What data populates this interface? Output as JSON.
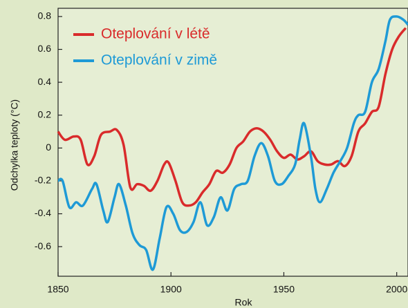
{
  "chart_data": {
    "type": "line",
    "xlabel": "Rok",
    "ylabel": "Odchylka teploty  (°C)",
    "xlim": [
      1850,
      2005
    ],
    "xticks": [
      1850,
      1900,
      1950,
      2000
    ],
    "ylim": [
      -0.78,
      0.85
    ],
    "yticks": [
      0.8,
      0.6,
      0.4,
      0.2,
      0,
      -0.2,
      -0.4,
      -0.6
    ],
    "legend": "upper left",
    "series": [
      {
        "name": "Oteplování v létě",
        "color": "#d92b2b",
        "x": [
          1850,
          1853,
          1857,
          1860,
          1863,
          1866,
          1869,
          1873,
          1876,
          1879,
          1882,
          1885,
          1888,
          1891,
          1894,
          1897,
          1899,
          1902,
          1905,
          1908,
          1911,
          1914,
          1917,
          1920,
          1923,
          1926,
          1929,
          1932,
          1935,
          1938,
          1941,
          1944,
          1947,
          1950,
          1953,
          1956,
          1959,
          1962,
          1965,
          1968,
          1971,
          1974,
          1977,
          1980,
          1983,
          1986,
          1989,
          1992,
          1995,
          1998,
          2001,
          2004
        ],
        "values": [
          0.1,
          0.05,
          0.07,
          0.05,
          -0.1,
          -0.05,
          0.08,
          0.1,
          0.11,
          0.02,
          -0.24,
          -0.22,
          -0.23,
          -0.26,
          -0.2,
          -0.1,
          -0.09,
          -0.2,
          -0.33,
          -0.35,
          -0.33,
          -0.27,
          -0.22,
          -0.14,
          -0.15,
          -0.1,
          0.0,
          0.04,
          0.1,
          0.12,
          0.1,
          0.05,
          -0.02,
          -0.06,
          -0.04,
          -0.07,
          -0.05,
          -0.02,
          -0.08,
          -0.1,
          -0.1,
          -0.08,
          -0.11,
          -0.05,
          0.1,
          0.15,
          0.22,
          0.25,
          0.45,
          0.6,
          0.68,
          0.73
        ]
      },
      {
        "name": "Oteplování v zimě",
        "color": "#1e9ad6",
        "x": [
          1850,
          1852,
          1855,
          1858,
          1861,
          1865,
          1867,
          1870,
          1872,
          1875,
          1877,
          1880,
          1883,
          1886,
          1889,
          1892,
          1895,
          1898,
          1901,
          1904,
          1907,
          1910,
          1913,
          1916,
          1919,
          1922,
          1925,
          1928,
          1931,
          1934,
          1937,
          1940,
          1943,
          1946,
          1949,
          1952,
          1955,
          1957,
          1959,
          1962,
          1964,
          1966,
          1969,
          1972,
          1975,
          1978,
          1981,
          1983,
          1986,
          1989,
          1992,
          1995,
          1997,
          2000,
          2003,
          2005
        ],
        "values": [
          -0.2,
          -0.2,
          -0.36,
          -0.33,
          -0.35,
          -0.25,
          -0.22,
          -0.38,
          -0.45,
          -0.3,
          -0.22,
          -0.35,
          -0.52,
          -0.59,
          -0.62,
          -0.74,
          -0.55,
          -0.36,
          -0.4,
          -0.5,
          -0.51,
          -0.45,
          -0.33,
          -0.47,
          -0.42,
          -0.3,
          -0.38,
          -0.25,
          -0.22,
          -0.2,
          -0.05,
          0.03,
          -0.05,
          -0.2,
          -0.22,
          -0.17,
          -0.1,
          0.05,
          0.15,
          -0.05,
          -0.25,
          -0.33,
          -0.25,
          -0.15,
          -0.08,
          0.0,
          0.15,
          0.2,
          0.22,
          0.4,
          0.48,
          0.65,
          0.78,
          0.8,
          0.78,
          0.75
        ]
      }
    ]
  }
}
